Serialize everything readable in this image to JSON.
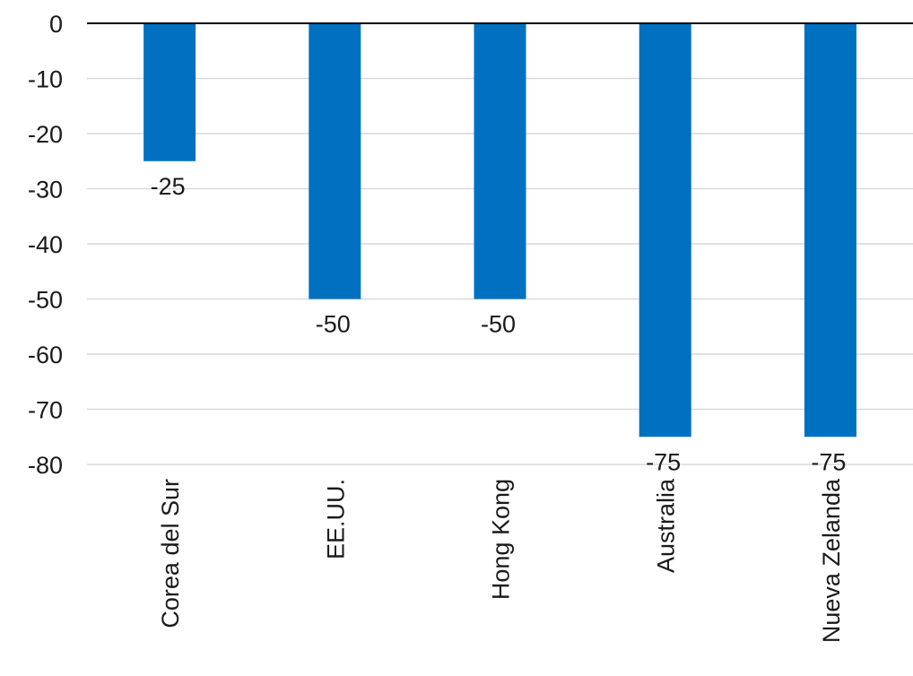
{
  "chart_data": {
    "type": "bar",
    "categories": [
      "Corea del Sur",
      "EE.UU.",
      "Hong Kong",
      "Australia",
      "Nueva Zelanda"
    ],
    "values": [
      -25,
      -50,
      -50,
      -75,
      -75
    ],
    "data_labels": [
      "-25",
      "-50",
      "-50",
      "-75",
      "-75"
    ],
    "y_ticks": [
      "0",
      "-10",
      "-20",
      "-30",
      "-40",
      "-50",
      "-60",
      "-70",
      "-80"
    ],
    "y_tick_values": [
      0,
      -10,
      -20,
      -30,
      -40,
      -50,
      -60,
      -70,
      -80
    ],
    "ylim": [
      -80,
      0
    ],
    "grid": true,
    "legend": false,
    "bar_color": "#0070c0",
    "title": "",
    "xlabel": "",
    "ylabel": ""
  }
}
